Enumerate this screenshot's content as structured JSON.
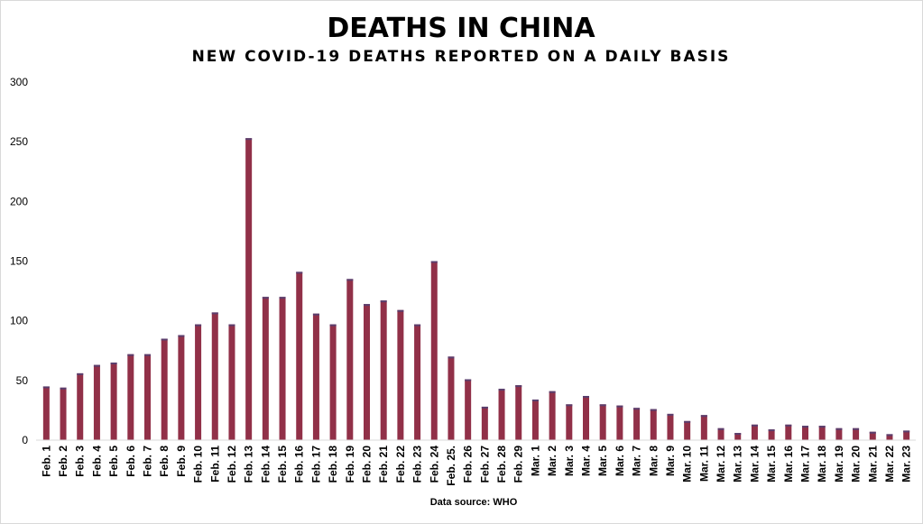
{
  "chart_data": {
    "type": "bar",
    "title": "DEATHS IN CHINA",
    "subtitle": "NEW COVID-19 DEATHS REPORTED ON A DAILY BASIS",
    "source": "Data source:  WHO",
    "ylim": [
      0,
      300
    ],
    "yticks": [
      0,
      50,
      100,
      150,
      200,
      250,
      300
    ],
    "grid": false,
    "bar_color": "#913048",
    "bar_edge_color": "#5a3f6e",
    "categories": [
      "Feb. 1",
      "Feb. 2",
      "Feb. 3",
      "Feb. 4",
      "Feb. 5",
      "Feb. 6",
      "Feb. 7",
      "Feb. 8",
      "Feb. 9",
      "Feb. 10",
      "Feb. 11",
      "Feb. 12",
      "Feb. 13",
      "Feb. 14",
      "Feb. 15",
      "Feb. 16",
      "Feb. 17",
      "Feb. 18",
      "Feb. 19",
      "Feb. 20",
      "Feb. 21",
      "Feb. 22",
      "Feb. 23",
      "Feb. 24",
      "Feb. 25.",
      "Feb. 26",
      "Feb. 27",
      "Feb. 28",
      "Feb. 29",
      "Mar. 1",
      "Mar. 2",
      "Mar. 3",
      "Mar. 4",
      "Mar. 5",
      "Mar. 6",
      "Mar. 7",
      "Mar. 8",
      "Mar. 9",
      "Mar. 10",
      "Mar. 11",
      "Mar. 12",
      "Mar. 13",
      "Mar. 14",
      "Mar. 15",
      "Mar. 16",
      "Mar. 17",
      "Mar. 18",
      "Mar. 19",
      "Mar. 20",
      "Mar. 21",
      "Mar. 22",
      "Mar. 23"
    ],
    "values": [
      45,
      44,
      56,
      63,
      65,
      72,
      72,
      85,
      88,
      97,
      107,
      97,
      253,
      120,
      120,
      141,
      106,
      97,
      135,
      114,
      117,
      109,
      97,
      150,
      70,
      51,
      28,
      43,
      46,
      34,
      41,
      30,
      37,
      30,
      29,
      27,
      26,
      22,
      16,
      21,
      10,
      6,
      13,
      9,
      13,
      12,
      12,
      10,
      10,
      7,
      5,
      8
    ]
  }
}
